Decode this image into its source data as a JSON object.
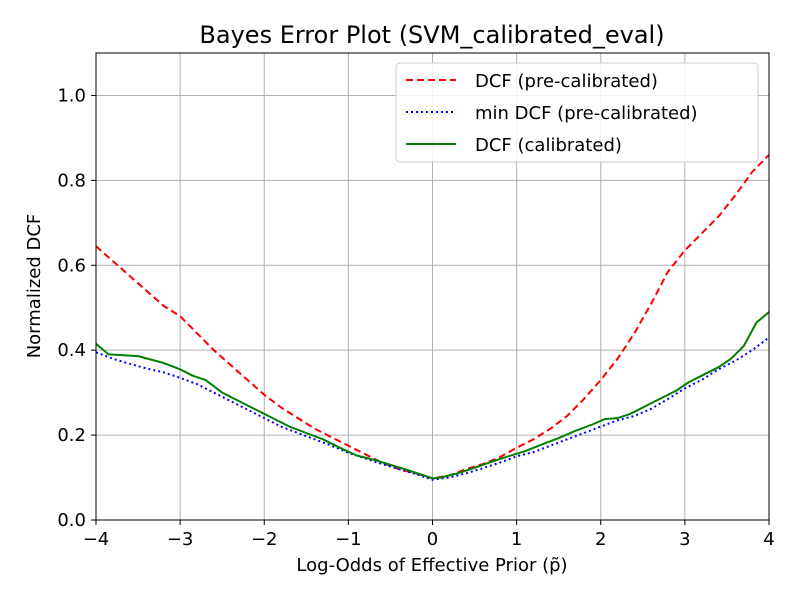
{
  "chart_data": {
    "type": "line",
    "title": "Bayes Error Plot (SVM_calibrated_eval)",
    "xlabel": "Log-Odds of Effective Prior (p̃)",
    "ylabel": "Normalized DCF",
    "xlim": [
      -4,
      4
    ],
    "ylim": [
      0,
      1.1
    ],
    "xticks": [
      -4,
      -3,
      -2,
      -1,
      0,
      1,
      2,
      3,
      4
    ],
    "xtick_labels": [
      "−4",
      "−3",
      "−2",
      "−1",
      "0",
      "1",
      "2",
      "3",
      "4"
    ],
    "yticks": [
      0.0,
      0.2,
      0.4,
      0.6,
      0.8,
      1.0
    ],
    "ytick_labels": [
      "0.0",
      "0.2",
      "0.4",
      "0.6",
      "0.8",
      "1.0"
    ],
    "grid": true,
    "legend_position": "top-right",
    "series": [
      {
        "name": "DCF (pre-calibrated)",
        "color": "#ff0000",
        "style": "dashed",
        "x": [
          -4.0,
          -3.8,
          -3.6,
          -3.4,
          -3.2,
          -3.0,
          -2.8,
          -2.6,
          -2.4,
          -2.2,
          -2.0,
          -1.8,
          -1.6,
          -1.4,
          -1.2,
          -1.0,
          -0.8,
          -0.6,
          -0.4,
          -0.2,
          0.0,
          0.2,
          0.4,
          0.6,
          0.8,
          1.0,
          1.2,
          1.4,
          1.6,
          1.8,
          2.0,
          2.2,
          2.4,
          2.6,
          2.8,
          3.0,
          3.2,
          3.4,
          3.6,
          3.8,
          4.0
        ],
        "y": [
          0.645,
          0.61,
          0.575,
          0.54,
          0.505,
          0.48,
          0.44,
          0.4,
          0.365,
          0.33,
          0.295,
          0.265,
          0.24,
          0.215,
          0.195,
          0.175,
          0.155,
          0.135,
          0.12,
          0.11,
          0.098,
          0.105,
          0.12,
          0.132,
          0.148,
          0.17,
          0.19,
          0.215,
          0.245,
          0.285,
          0.33,
          0.38,
          0.44,
          0.51,
          0.585,
          0.635,
          0.675,
          0.715,
          0.765,
          0.82,
          0.86
        ]
      },
      {
        "name": "min DCF (pre-calibrated)",
        "color": "#0000ff",
        "style": "dotted",
        "x": [
          -4.0,
          -3.8,
          -3.6,
          -3.4,
          -3.2,
          -3.0,
          -2.8,
          -2.6,
          -2.4,
          -2.2,
          -2.0,
          -1.8,
          -1.6,
          -1.4,
          -1.2,
          -1.0,
          -0.8,
          -0.6,
          -0.4,
          -0.2,
          0.0,
          0.2,
          0.4,
          0.6,
          0.8,
          1.0,
          1.2,
          1.4,
          1.6,
          1.8,
          2.0,
          2.2,
          2.4,
          2.6,
          2.8,
          3.0,
          3.2,
          3.4,
          3.6,
          3.8,
          4.0
        ],
        "y": [
          0.395,
          0.38,
          0.368,
          0.357,
          0.348,
          0.335,
          0.32,
          0.3,
          0.28,
          0.26,
          0.24,
          0.22,
          0.205,
          0.19,
          0.175,
          0.158,
          0.145,
          0.132,
          0.12,
          0.108,
          0.095,
          0.1,
          0.11,
          0.122,
          0.135,
          0.15,
          0.16,
          0.175,
          0.19,
          0.205,
          0.22,
          0.235,
          0.245,
          0.262,
          0.285,
          0.31,
          0.33,
          0.355,
          0.375,
          0.4,
          0.43
        ]
      },
      {
        "name": "DCF (calibrated)",
        "color": "#008000",
        "style": "solid",
        "x": [
          -4.0,
          -3.85,
          -3.5,
          -3.2,
          -3.0,
          -2.85,
          -2.7,
          -2.5,
          -2.3,
          -2.1,
          -1.9,
          -1.7,
          -1.5,
          -1.3,
          -1.1,
          -0.9,
          -0.7,
          -0.5,
          -0.3,
          -0.1,
          0.0,
          0.1,
          0.3,
          0.5,
          0.7,
          0.9,
          1.1,
          1.3,
          1.5,
          1.7,
          1.9,
          2.05,
          2.2,
          2.35,
          2.55,
          2.7,
          2.9,
          3.05,
          3.2,
          3.4,
          3.55,
          3.7,
          3.85,
          4.0
        ],
        "y": [
          0.415,
          0.39,
          0.386,
          0.37,
          0.355,
          0.34,
          0.33,
          0.3,
          0.28,
          0.26,
          0.24,
          0.22,
          0.205,
          0.19,
          0.17,
          0.152,
          0.142,
          0.13,
          0.118,
          0.105,
          0.098,
          0.1,
          0.11,
          0.123,
          0.137,
          0.15,
          0.162,
          0.178,
          0.193,
          0.21,
          0.225,
          0.238,
          0.24,
          0.25,
          0.27,
          0.285,
          0.305,
          0.325,
          0.34,
          0.36,
          0.38,
          0.41,
          0.465,
          0.49
        ]
      }
    ]
  }
}
